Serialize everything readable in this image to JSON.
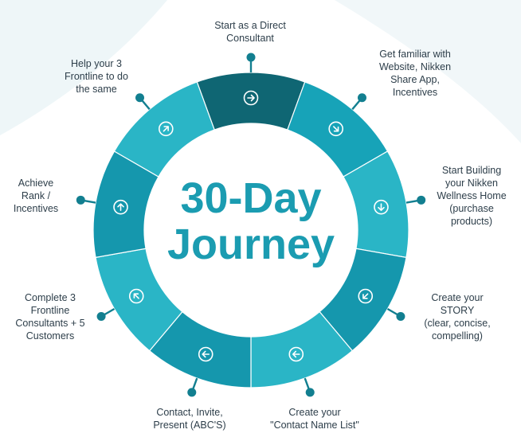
{
  "title": {
    "line1": "30-Day",
    "line2": "Journey"
  },
  "steps": [
    {
      "label": "Start as a Direct\nConsultant",
      "icon": "arrow-right-icon",
      "color": "#0f6673"
    },
    {
      "label": "Get familiar with\nWebsite, Nikken\nShare App,\nIncentives",
      "icon": "arrow-down-right-icon",
      "color": "#17a3b8"
    },
    {
      "label": "Start Building\nyour Nikken\nWellness Home\n(purchase\nproducts)",
      "icon": "arrow-down-icon",
      "color": "#2ab5c6"
    },
    {
      "label": "Create your\nSTORY\n(clear, concise,\ncompelling)",
      "icon": "arrow-down-left-icon",
      "color": "#1597ad"
    },
    {
      "label": "Create your\n\"Contact Name List\"",
      "icon": "arrow-left-icon",
      "color": "#2ab5c6"
    },
    {
      "label": "Contact, Invite,\nPresent (ABC'S)",
      "icon": "arrow-left-icon",
      "color": "#1597ad"
    },
    {
      "label": "Complete 3\nFrontline\nConsultants + 5\nCustomers",
      "icon": "arrow-up-left-icon",
      "color": "#2ab5c6"
    },
    {
      "label": "Achieve\nRank /\nIncentives",
      "icon": "arrow-up-icon",
      "color": "#1597ad"
    },
    {
      "label": "Help your 3\nFrontline to do\nthe same",
      "icon": "arrow-up-right-icon",
      "color": "#2ab5c6"
    }
  ],
  "colors": {
    "title": "#1b9cb1",
    "pin": "#127f90",
    "text": "#2d3e4a",
    "swoosh": "#eef6f8"
  }
}
